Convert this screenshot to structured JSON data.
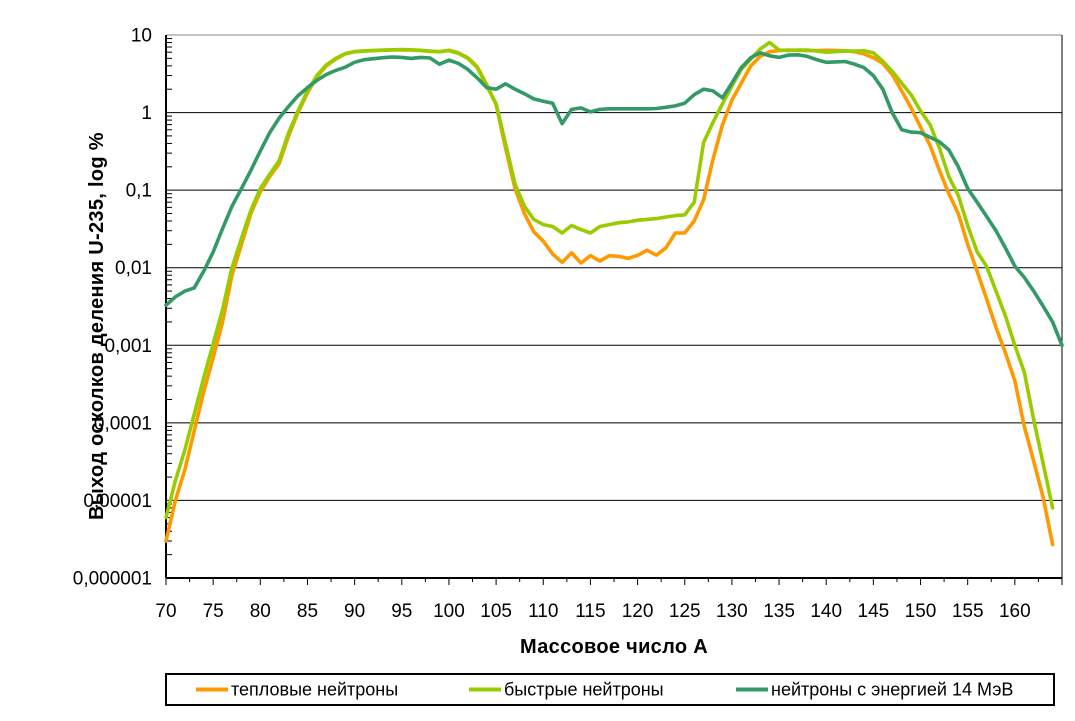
{
  "chart_data": {
    "type": "line",
    "title": "",
    "xlabel": "Массовое число А",
    "ylabel": "Выход осколков деления U-235, log %",
    "x_axis": {
      "min": 70,
      "max": 165,
      "major_tick_step": 5,
      "minor_tick_step": 2.5
    },
    "y_axis": {
      "scale": "log",
      "min": 1e-06,
      "max": 10,
      "gridlines": "each decade"
    },
    "grid": "horizontal decade lines",
    "legend_position": "bottom",
    "x_tick_labels": [
      "70",
      "75",
      "80",
      "85",
      "90",
      "95",
      "100",
      "105",
      "110",
      "115",
      "120",
      "125",
      "130",
      "135",
      "140",
      "145",
      "150",
      "155",
      "160"
    ],
    "y_tick_labels": [
      "10",
      "1",
      "0,1",
      "0,01",
      "0,001",
      "0,0001",
      "0,00001",
      "0,000001"
    ],
    "colors": {
      "axis": "#000000",
      "grid": "#000000",
      "plot_border_top": "#888888",
      "background": "#FFFFFF"
    },
    "series": [
      {
        "id": "thermal",
        "name": "тепловые нейтроны",
        "color": "#FF9900",
        "x_start": 70,
        "x_step": 1,
        "values": [
          3e-06,
          1e-05,
          2.5e-05,
          8e-05,
          0.00025,
          0.0007,
          0.002,
          0.008,
          0.02,
          0.05,
          0.095,
          0.15,
          0.22,
          0.5,
          1.0,
          1.8,
          2.9,
          4.0,
          4.9,
          5.7,
          6.1,
          6.25,
          6.3,
          6.35,
          6.4,
          6.45,
          6.4,
          6.3,
          6.15,
          6.1,
          6.35,
          5.9,
          5.1,
          3.9,
          2.3,
          1.26,
          0.35,
          0.105,
          0.05,
          0.029,
          0.022,
          0.015,
          0.0117,
          0.0155,
          0.0115,
          0.0143,
          0.0122,
          0.0143,
          0.014,
          0.0132,
          0.0144,
          0.0168,
          0.0145,
          0.018,
          0.028,
          0.028,
          0.04,
          0.075,
          0.25,
          0.7,
          1.45,
          2.4,
          4.0,
          5.3,
          6.1,
          6.3,
          6.4,
          6.35,
          6.3,
          6.3,
          6.35,
          6.3,
          6.25,
          6.1,
          5.7,
          5.1,
          4.3,
          3.1,
          1.9,
          1.15,
          0.65,
          0.38,
          0.18,
          0.09,
          0.05,
          0.02,
          0.009,
          0.004,
          0.0017,
          0.0008,
          0.00035,
          9e-05,
          3.2e-05,
          1.1e-05,
          2.7e-06
        ]
      },
      {
        "id": "fast",
        "name": "быстрые нейтроны",
        "color": "#99CC00",
        "x_start": 70,
        "x_step": 1,
        "values": [
          6e-06,
          1.8e-05,
          4.5e-05,
          0.00013,
          0.00038,
          0.00105,
          0.0029,
          0.01,
          0.024,
          0.055,
          0.105,
          0.16,
          0.24,
          0.55,
          1.05,
          1.9,
          3.0,
          4.1,
          5.0,
          5.75,
          6.1,
          6.2,
          6.3,
          6.4,
          6.45,
          6.5,
          6.45,
          6.35,
          6.2,
          6.1,
          6.3,
          5.8,
          5.0,
          3.8,
          2.2,
          1.3,
          0.4,
          0.12,
          0.062,
          0.042,
          0.036,
          0.034,
          0.028,
          0.035,
          0.031,
          0.028,
          0.034,
          0.036,
          0.038,
          0.039,
          0.041,
          0.042,
          0.043,
          0.045,
          0.047,
          0.048,
          0.07,
          0.41,
          0.75,
          1.3,
          2.2,
          3.6,
          4.9,
          6.6,
          8.0,
          6.4,
          6.3,
          6.4,
          6.4,
          6.2,
          6.0,
          6.1,
          6.2,
          6.2,
          6.25,
          5.9,
          4.6,
          3.4,
          2.4,
          1.7,
          1.05,
          0.7,
          0.35,
          0.15,
          0.085,
          0.035,
          0.016,
          0.0105,
          0.005,
          0.0024,
          0.001,
          0.00045,
          0.00011,
          3e-05,
          8e-06
        ]
      },
      {
        "id": "mev14",
        "name": "нейтроны с энергией 14 МэВ",
        "color": "#339966",
        "x_start": 70,
        "x_step": 1,
        "values": [
          0.0033,
          0.0042,
          0.005,
          0.0055,
          0.009,
          0.016,
          0.032,
          0.062,
          0.105,
          0.18,
          0.32,
          0.55,
          0.85,
          1.2,
          1.65,
          2.1,
          2.6,
          3.1,
          3.5,
          3.85,
          4.45,
          4.8,
          4.95,
          5.1,
          5.2,
          5.15,
          5.0,
          5.15,
          5.05,
          4.2,
          4.75,
          4.3,
          3.6,
          2.8,
          2.1,
          2.0,
          2.35,
          2.0,
          1.75,
          1.5,
          1.4,
          1.32,
          0.72,
          1.1,
          1.15,
          1.02,
          1.1,
          1.12,
          1.12,
          1.12,
          1.12,
          1.12,
          1.13,
          1.17,
          1.22,
          1.32,
          1.7,
          2.0,
          1.9,
          1.55,
          2.4,
          3.8,
          5.1,
          5.9,
          5.4,
          5.15,
          5.5,
          5.55,
          5.3,
          4.8,
          4.45,
          4.5,
          4.55,
          4.2,
          3.8,
          3.0,
          2.0,
          1.0,
          0.6,
          0.56,
          0.55,
          0.48,
          0.42,
          0.33,
          0.2,
          0.105,
          0.07,
          0.046,
          0.03,
          0.018,
          0.0105,
          0.0075,
          0.005,
          0.0032,
          0.002,
          0.001
        ]
      }
    ]
  }
}
